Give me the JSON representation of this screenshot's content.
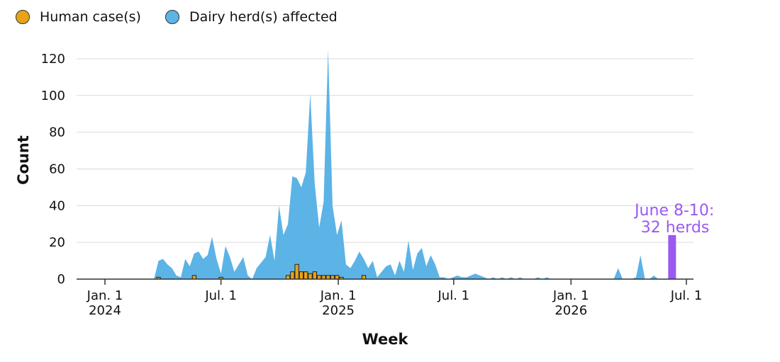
{
  "colors": {
    "human": "#E8A317",
    "herds": "#5BB3E6",
    "highlight": "#9B59F0",
    "grid": "#D9D9D9",
    "axis": "#333333"
  },
  "legend": [
    {
      "label": "Human case(s)",
      "color": "#E8A317"
    },
    {
      "label": "Dairy herd(s) affected",
      "color": "#5BB3E6"
    }
  ],
  "chart_data": {
    "type": "area",
    "title": "",
    "xlabel": "Week",
    "ylabel": "Count",
    "ylim": [
      0,
      125
    ],
    "yticks": [
      0,
      20,
      40,
      60,
      80,
      100,
      120
    ],
    "grid": "horizontal",
    "legend_position": "top-left",
    "xlim": [
      "2024-01-01",
      "2026-07-01"
    ],
    "xticks": [
      {
        "date": "2024-01-01",
        "label": "Jan. 1",
        "sublabel": "2024"
      },
      {
        "date": "2024-07-01",
        "label": "Jul. 1",
        "sublabel": ""
      },
      {
        "date": "2025-01-01",
        "label": "Jan. 1",
        "sublabel": "2025"
      },
      {
        "date": "2025-07-01",
        "label": "Jul. 1",
        "sublabel": ""
      },
      {
        "date": "2026-01-01",
        "label": "Jan. 1",
        "sublabel": "2026"
      },
      {
        "date": "2026-07-01",
        "label": "Jul. 1",
        "sublabel": ""
      }
    ],
    "series": [
      {
        "name": "Dairy herd(s) affected",
        "kind": "area",
        "points": [
          [
            "2024-01-01",
            0
          ],
          [
            "2024-03-18",
            0
          ],
          [
            "2024-03-25",
            10
          ],
          [
            "2024-04-01",
            11
          ],
          [
            "2024-04-08",
            8
          ],
          [
            "2024-04-15",
            6
          ],
          [
            "2024-04-22",
            2
          ],
          [
            "2024-04-29",
            1
          ],
          [
            "2024-05-06",
            11
          ],
          [
            "2024-05-13",
            7
          ],
          [
            "2024-05-20",
            14
          ],
          [
            "2024-05-27",
            15
          ],
          [
            "2024-06-03",
            11
          ],
          [
            "2024-06-10",
            13
          ],
          [
            "2024-06-17",
            23
          ],
          [
            "2024-06-24",
            11
          ],
          [
            "2024-07-01",
            3
          ],
          [
            "2024-07-08",
            18
          ],
          [
            "2024-07-15",
            12
          ],
          [
            "2024-07-22",
            4
          ],
          [
            "2024-07-29",
            8
          ],
          [
            "2024-08-05",
            12
          ],
          [
            "2024-08-12",
            2
          ],
          [
            "2024-08-19",
            0
          ],
          [
            "2024-08-26",
            6
          ],
          [
            "2024-09-02",
            9
          ],
          [
            "2024-09-09",
            12
          ],
          [
            "2024-09-16",
            24
          ],
          [
            "2024-09-23",
            10
          ],
          [
            "2024-09-30",
            40
          ],
          [
            "2024-10-07",
            24
          ],
          [
            "2024-10-14",
            30
          ],
          [
            "2024-10-21",
            56
          ],
          [
            "2024-10-28",
            55
          ],
          [
            "2024-11-04",
            50
          ],
          [
            "2024-11-11",
            58
          ],
          [
            "2024-11-18",
            101
          ],
          [
            "2024-11-25",
            52
          ],
          [
            "2024-12-02",
            28
          ],
          [
            "2024-12-09",
            42
          ],
          [
            "2024-12-16",
            125
          ],
          [
            "2024-12-23",
            40
          ],
          [
            "2024-12-30",
            24
          ],
          [
            "2025-01-06",
            32
          ],
          [
            "2025-01-13",
            8
          ],
          [
            "2025-01-20",
            6
          ],
          [
            "2025-01-27",
            10
          ],
          [
            "2025-02-03",
            15
          ],
          [
            "2025-02-10",
            11
          ],
          [
            "2025-02-17",
            6
          ],
          [
            "2025-02-24",
            10
          ],
          [
            "2025-03-03",
            1
          ],
          [
            "2025-03-10",
            4
          ],
          [
            "2025-03-17",
            7
          ],
          [
            "2025-03-24",
            8
          ],
          [
            "2025-03-31",
            2
          ],
          [
            "2025-04-07",
            10
          ],
          [
            "2025-04-14",
            4
          ],
          [
            "2025-04-21",
            21
          ],
          [
            "2025-04-28",
            5
          ],
          [
            "2025-05-05",
            14
          ],
          [
            "2025-05-12",
            17
          ],
          [
            "2025-05-19",
            7
          ],
          [
            "2025-05-26",
            13
          ],
          [
            "2025-06-02",
            8
          ],
          [
            "2025-06-09",
            1
          ],
          [
            "2025-06-16",
            1
          ],
          [
            "2025-06-23",
            0
          ],
          [
            "2025-06-30",
            1
          ],
          [
            "2025-07-07",
            2
          ],
          [
            "2025-07-14",
            1
          ],
          [
            "2025-07-21",
            1
          ],
          [
            "2025-07-28",
            2
          ],
          [
            "2025-08-04",
            3
          ],
          [
            "2025-08-11",
            2
          ],
          [
            "2025-08-18",
            1
          ],
          [
            "2025-08-25",
            0
          ],
          [
            "2025-09-01",
            1
          ],
          [
            "2025-09-08",
            0
          ],
          [
            "2025-09-15",
            1
          ],
          [
            "2025-09-22",
            0
          ],
          [
            "2025-09-29",
            1
          ],
          [
            "2025-10-06",
            0
          ],
          [
            "2025-10-13",
            1
          ],
          [
            "2025-10-20",
            0
          ],
          [
            "2025-11-03",
            0
          ],
          [
            "2025-11-10",
            1
          ],
          [
            "2025-11-17",
            0
          ],
          [
            "2025-11-24",
            1
          ],
          [
            "2025-12-01",
            0
          ],
          [
            "2026-03-09",
            0
          ],
          [
            "2026-03-16",
            6
          ],
          [
            "2026-03-23",
            0
          ],
          [
            "2026-04-06",
            0
          ],
          [
            "2026-04-13",
            1
          ],
          [
            "2026-04-20",
            13
          ],
          [
            "2026-04-27",
            0
          ],
          [
            "2026-05-04",
            0
          ],
          [
            "2026-05-11",
            2
          ],
          [
            "2026-05-18",
            0
          ],
          [
            "2026-07-01",
            0
          ]
        ]
      },
      {
        "name": "Human case(s)",
        "kind": "bar",
        "points": [
          [
            "2024-03-25",
            1
          ],
          [
            "2024-05-20",
            2
          ],
          [
            "2024-07-01",
            1
          ],
          [
            "2024-10-14",
            2
          ],
          [
            "2024-10-21",
            4
          ],
          [
            "2024-10-28",
            8
          ],
          [
            "2024-11-04",
            4
          ],
          [
            "2024-11-11",
            4
          ],
          [
            "2024-11-18",
            3
          ],
          [
            "2024-11-25",
            4
          ],
          [
            "2024-12-02",
            2
          ],
          [
            "2024-12-09",
            2
          ],
          [
            "2024-12-16",
            2
          ],
          [
            "2024-12-23",
            2
          ],
          [
            "2024-12-30",
            2
          ],
          [
            "2025-01-06",
            1
          ],
          [
            "2025-02-10",
            2
          ]
        ]
      }
    ],
    "highlight": {
      "date": "2026-06-08",
      "value": 24,
      "label_line1": "June 8-10:",
      "label_line2": "32 herds"
    }
  }
}
